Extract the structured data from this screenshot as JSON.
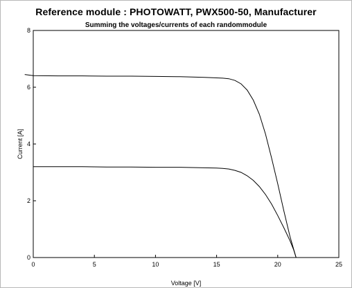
{
  "chart_data": {
    "type": "line",
    "title": "Reference module : PHOTOWATT, PWX500-50, Manufacturer",
    "subtitle": "Summing the voltages/currents of each  randommodule",
    "xlabel": "Voltage [V]",
    "ylabel": "Current [A]",
    "xlim": [
      0,
      25
    ],
    "ylim": [
      0,
      8
    ],
    "xticks": [
      0,
      5,
      10,
      15,
      20,
      25
    ],
    "yticks": [
      0,
      2,
      4,
      6,
      8
    ],
    "grid": false,
    "series": [
      {
        "x": [
          -0.7,
          0,
          2,
          4,
          6,
          8,
          10,
          12,
          13,
          14,
          15,
          15.5,
          16,
          16.5,
          17,
          17.5,
          18,
          18.5,
          19,
          19.5,
          20,
          20.5,
          21,
          21.3,
          21.5
        ],
        "y": [
          6.45,
          6.41,
          6.4,
          6.4,
          6.39,
          6.39,
          6.38,
          6.37,
          6.36,
          6.35,
          6.33,
          6.32,
          6.3,
          6.24,
          6.12,
          5.9,
          5.55,
          5.05,
          4.35,
          3.5,
          2.6,
          1.65,
          0.75,
          0.3,
          0.0
        ]
      },
      {
        "x": [
          0,
          2,
          4,
          6,
          8,
          10,
          12,
          13,
          14,
          15,
          15.5,
          16,
          16.5,
          17,
          17.5,
          18,
          18.5,
          19,
          19.5,
          20,
          20.5,
          21,
          21.3,
          21.5
        ],
        "y": [
          3.2,
          3.2,
          3.2,
          3.19,
          3.19,
          3.18,
          3.18,
          3.17,
          3.16,
          3.15,
          3.14,
          3.12,
          3.07,
          3.0,
          2.88,
          2.72,
          2.5,
          2.22,
          1.88,
          1.48,
          1.05,
          0.6,
          0.28,
          0.0
        ]
      }
    ]
  }
}
